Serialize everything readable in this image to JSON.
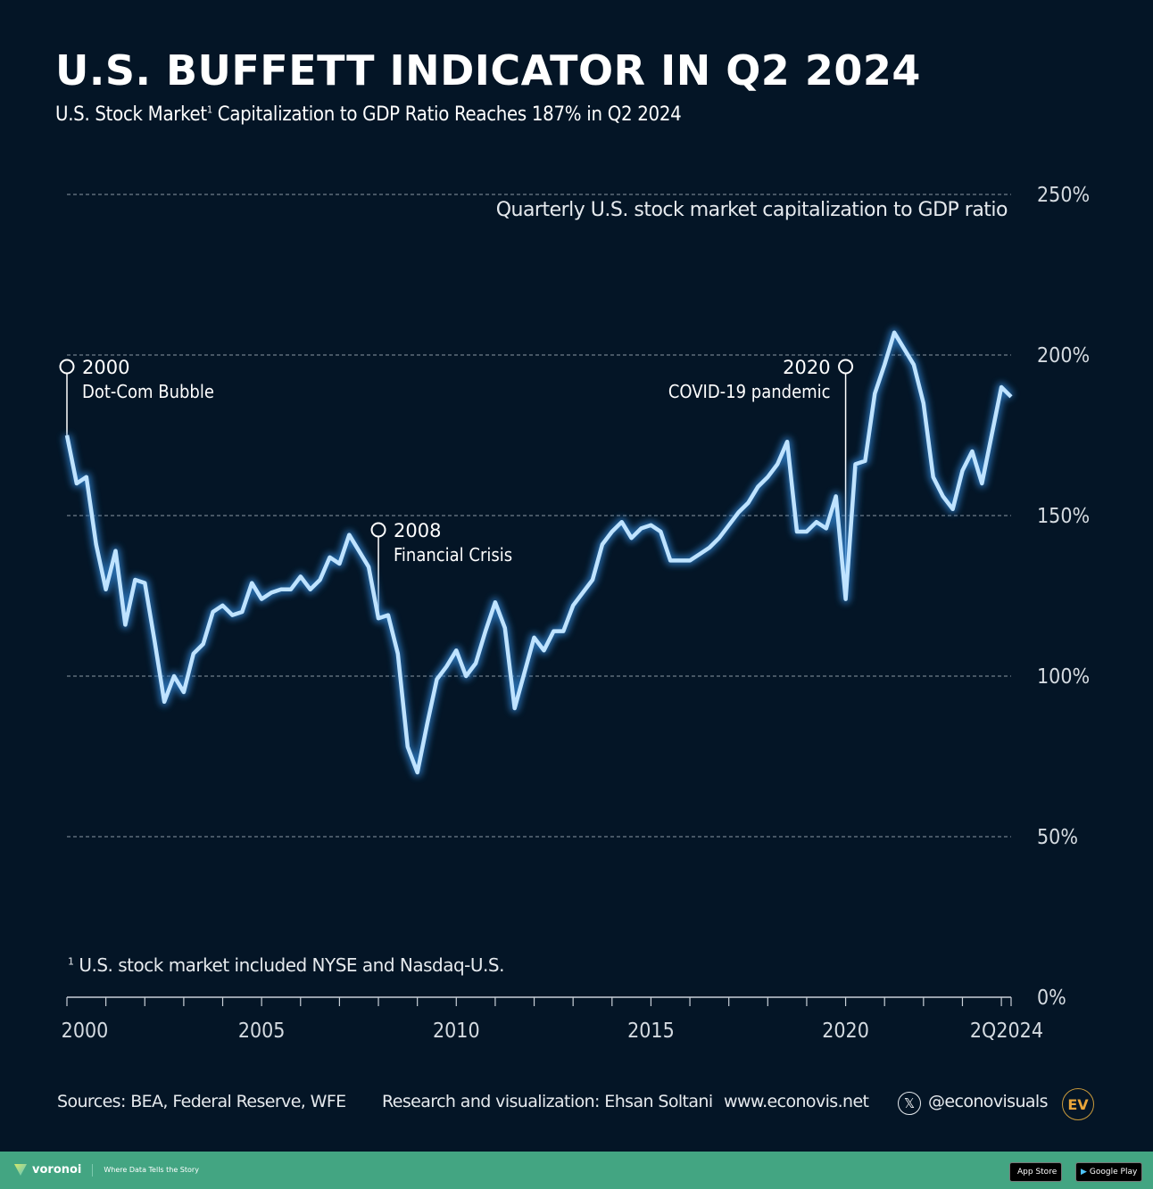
{
  "header": {
    "title": "U.S. BUFFETT INDICATOR IN Q2 2024",
    "subtitle_pre": "U.S. Stock Market",
    "subtitle_sup": "1",
    "subtitle_post": " Capitalization to GDP Ratio Reaches 187% in Q2 2024"
  },
  "chart_data": {
    "type": "line",
    "title": "U.S. BUFFETT INDICATOR IN Q2 2024",
    "series_label": "Quarterly U.S. stock market capitalization to GDP ratio",
    "xlabel": "",
    "ylabel": "",
    "x_start": 2000.0,
    "x_step_years": 0.25,
    "xlim": [
      2000,
      2024.25
    ],
    "ylim": [
      0,
      250
    ],
    "y_ticks": [
      0,
      50,
      100,
      150,
      200,
      250
    ],
    "y_tick_labels": [
      "0%",
      "50%",
      "100%",
      "150%",
      "200%",
      "250%"
    ],
    "x_tick_labels": [
      {
        "value": 2000,
        "label": "2000"
      },
      {
        "value": 2005,
        "label": "2005"
      },
      {
        "value": 2010,
        "label": "2010"
      },
      {
        "value": 2015,
        "label": "2015"
      },
      {
        "value": 2020,
        "label": "2020"
      },
      {
        "value": 2024.25,
        "label": "2Q2024"
      }
    ],
    "x_minor_ticks_every_year": true,
    "grid": "horizontal-dashed",
    "series": [
      {
        "name": "Market cap to GDP (%)",
        "color": "#bfe3ff",
        "glow": "#2d7fc9",
        "values": [
          175,
          160,
          162,
          141,
          127,
          139,
          116,
          130,
          129,
          111,
          92,
          100,
          95,
          107,
          110,
          120,
          122,
          119,
          120,
          129,
          124,
          126,
          127,
          127,
          131,
          127,
          130,
          137,
          135,
          144,
          139,
          134,
          118,
          119,
          107,
          78,
          70,
          85,
          99,
          103,
          108,
          100,
          104,
          114,
          123,
          115,
          90,
          101,
          112,
          108,
          114,
          114,
          122,
          126,
          130,
          141,
          145,
          148,
          143,
          146,
          147,
          145,
          136,
          136,
          136,
          138,
          140,
          143,
          147,
          151,
          154,
          159,
          162,
          166,
          173,
          145,
          145,
          148,
          146,
          156,
          124,
          166,
          167,
          188,
          197,
          207,
          202,
          197,
          185,
          162,
          156,
          152,
          164,
          170,
          160,
          175,
          190,
          187
        ]
      }
    ],
    "annotations": [
      {
        "x": 2000.0,
        "year": "2000",
        "text": "Dot-Com Bubble",
        "side": "right"
      },
      {
        "x": 2008.0,
        "year": "2008",
        "text": "Financial Crisis",
        "side": "right"
      },
      {
        "x": 2020.0,
        "year": "2020",
        "text": "COVID-19 pandemic",
        "side": "left"
      }
    ]
  },
  "footnote": {
    "sup": "1",
    "text": " U.S. stock market included NYSE and Nasdaq-U.S."
  },
  "footer": {
    "sources": "Sources: BEA, Federal Reserve, WFE",
    "credit": "Research and visualization: Ehsan Soltani",
    "website": "www.econovis.net",
    "x_icon": "x-logo-icon",
    "x_glyph": "𝕏",
    "handle": "@econovisuals",
    "logo": "EV"
  },
  "bottom_bar": {
    "brand": "voronoi",
    "tagline": "Where Data Tells the Story",
    "app_store": "App Store",
    "google_play": "Google Play",
    "apple_glyph": "",
    "play_glyph": "▶",
    "bg_color": "#43a582"
  }
}
